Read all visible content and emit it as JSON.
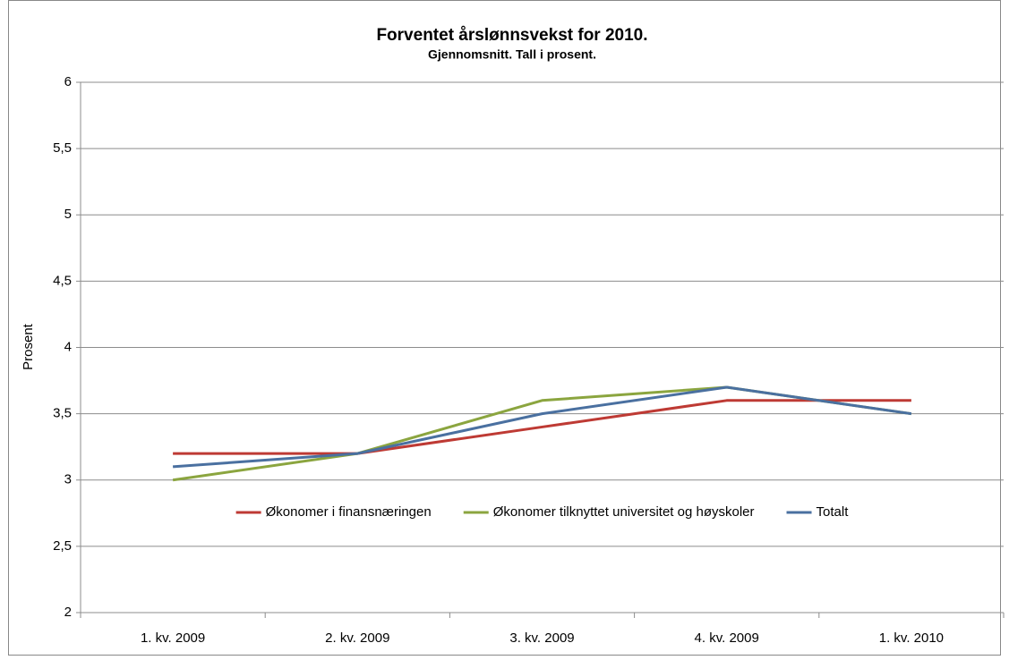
{
  "chart_data": {
    "type": "line",
    "title": "Forventet årslønnsvekst for 2010.",
    "subtitle": "Gjennomsnitt. Tall i prosent.",
    "y_label": "Prosent",
    "categories": [
      "1. kv. 2009",
      "2. kv. 2009",
      "3. kv. 2009",
      "4. kv. 2009",
      "1. kv. 2010"
    ],
    "series": [
      {
        "name": "Økonomer i finansnæringen",
        "color": "#be3a34",
        "values": [
          3.2,
          3.2,
          3.4,
          3.6,
          3.6
        ]
      },
      {
        "name": "Økonomer tilknyttet universitet og høyskoler",
        "color": "#8ba53f",
        "values": [
          3.0,
          3.2,
          3.6,
          3.7,
          3.5
        ]
      },
      {
        "name": "Totalt",
        "color": "#4a70a0",
        "values": [
          3.1,
          3.2,
          3.5,
          3.7,
          3.5
        ]
      }
    ],
    "ylim": [
      2,
      6
    ],
    "yticks": [
      2,
      {
        "value": 2.5,
        "label": "2,5"
      },
      3,
      {
        "value": 3.5,
        "label": "3,5"
      },
      4,
      {
        "value": 4.5,
        "label": "4,5"
      },
      5,
      {
        "value": 5.5,
        "label": "5,5"
      },
      6
    ],
    "grid": true
  }
}
